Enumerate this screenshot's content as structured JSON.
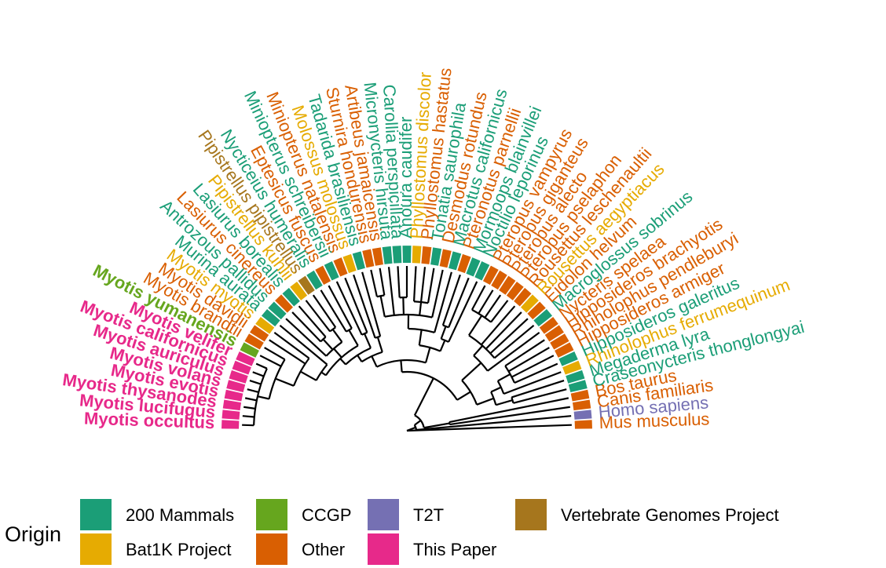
{
  "colors": {
    "200 Mammals": "#1b9e77",
    "Bat1K Project": "#e6ab02",
    "CCGP": "#66a61e",
    "Other": "#d95f02",
    "T2T": "#7570b3",
    "This Paper": "#e7298a",
    "Vertebrate Genomes Project": "#a6761d",
    "branch": "#000000"
  },
  "legend": {
    "title": "Origin",
    "items": [
      {
        "label": "200 Mammals",
        "origin": "200 Mammals"
      },
      {
        "label": "Bat1K Project",
        "origin": "Bat1K Project"
      },
      {
        "label": "CCGP",
        "origin": "CCGP"
      },
      {
        "label": "Other",
        "origin": "Other"
      },
      {
        "label": "T2T",
        "origin": "T2T"
      },
      {
        "label": "This Paper",
        "origin": "This Paper"
      },
      {
        "label": "Vertebrate Genomes Project",
        "origin": "Vertebrate Genomes Project"
      }
    ]
  },
  "tips": [
    {
      "name": "Mus musculus",
      "origin": "Other",
      "bold": false
    },
    {
      "name": "Homo sapiens",
      "origin": "T2T",
      "bold": false
    },
    {
      "name": "Canis familiaris",
      "origin": "Other",
      "bold": false
    },
    {
      "name": "Bos taurus",
      "origin": "Other",
      "bold": false
    },
    {
      "name": "Craseonycteris thonglongyai",
      "origin": "200 Mammals",
      "bold": false
    },
    {
      "name": "Megaderma lyra",
      "origin": "200 Mammals",
      "bold": false
    },
    {
      "name": "Rhinolophus ferrumequinum",
      "origin": "Bat1K Project",
      "bold": false
    },
    {
      "name": "Hipposideros galeritus",
      "origin": "200 Mammals",
      "bold": false
    },
    {
      "name": "Hipposideros armiger",
      "origin": "Other",
      "bold": false
    },
    {
      "name": "Rhinolophus pendleburyi",
      "origin": "Other",
      "bold": false
    },
    {
      "name": "Hipposideros brachyotis",
      "origin": "Other",
      "bold": false
    },
    {
      "name": "Nycteris spelaea",
      "origin": "Other",
      "bold": false
    },
    {
      "name": "Macroglossus sobrinus",
      "origin": "200 Mammals",
      "bold": false
    },
    {
      "name": "Eidolon helvum",
      "origin": "Other",
      "bold": false
    },
    {
      "name": "Rousettus aegyptiacus",
      "origin": "Bat1K Project",
      "bold": false
    },
    {
      "name": "Rousettus leschenaultii",
      "origin": "Other",
      "bold": false
    },
    {
      "name": "Pteropus pselaphon",
      "origin": "Other",
      "bold": false
    },
    {
      "name": "Pteropus alecto",
      "origin": "Other",
      "bold": false
    },
    {
      "name": "Pteropus giganteus",
      "origin": "Other",
      "bold": false
    },
    {
      "name": "Pteropus vampyrus",
      "origin": "Other",
      "bold": false
    },
    {
      "name": "Noctilio leporinus",
      "origin": "200 Mammals",
      "bold": false
    },
    {
      "name": "Mormoops blainvillei",
      "origin": "200 Mammals",
      "bold": false
    },
    {
      "name": "Pteronotus parnellii",
      "origin": "Other",
      "bold": false
    },
    {
      "name": "Macrotus californicus",
      "origin": "200 Mammals",
      "bold": false
    },
    {
      "name": "Desmodus rotundus",
      "origin": "Other",
      "bold": false
    },
    {
      "name": "Tonatia saurophila",
      "origin": "200 Mammals",
      "bold": false
    },
    {
      "name": "Phyllostomus hastatus",
      "origin": "Other",
      "bold": false
    },
    {
      "name": "Phyllostomus discolor",
      "origin": "Bat1K Project",
      "bold": false
    },
    {
      "name": "Anoura caudifer",
      "origin": "200 Mammals",
      "bold": false
    },
    {
      "name": "Carollia perspicillata",
      "origin": "200 Mammals",
      "bold": false
    },
    {
      "name": "Micronycteris hirsuta",
      "origin": "200 Mammals",
      "bold": false
    },
    {
      "name": "Artibeus jamaicensis",
      "origin": "Other",
      "bold": false
    },
    {
      "name": "Sturnira hondurensis",
      "origin": "Other",
      "bold": false
    },
    {
      "name": "Tadarida brasiliensis",
      "origin": "200 Mammals",
      "bold": false
    },
    {
      "name": "Molossus molossus",
      "origin": "Bat1K Project",
      "bold": false
    },
    {
      "name": "Miniopterus natalensis",
      "origin": "Other",
      "bold": false
    },
    {
      "name": "Miniopterus schreibersii",
      "origin": "200 Mammals",
      "bold": false
    },
    {
      "name": "Eptesicus fuscus",
      "origin": "Other",
      "bold": false
    },
    {
      "name": "Nycticeius humeralis",
      "origin": "200 Mammals",
      "bold": false
    },
    {
      "name": "Pipistrellus pipistrellus",
      "origin": "Vertebrate Genomes Project",
      "bold": false
    },
    {
      "name": "Pipistrellus kuhlii",
      "origin": "Bat1K Project",
      "bold": false
    },
    {
      "name": "Lasiurus borealis",
      "origin": "200 Mammals",
      "bold": false
    },
    {
      "name": "Lasiurus cinereus",
      "origin": "Other",
      "bold": false
    },
    {
      "name": "Antrozous pallidus",
      "origin": "200 Mammals",
      "bold": false
    },
    {
      "name": "Murina aurata",
      "origin": "200 Mammals",
      "bold": false
    },
    {
      "name": "Myotis myotis",
      "origin": "Bat1K Project",
      "bold": false
    },
    {
      "name": "Myotis davidii",
      "origin": "Other",
      "bold": false
    },
    {
      "name": "Myotis brandtii",
      "origin": "Other",
      "bold": false
    },
    {
      "name": "Myotis yumanensis",
      "origin": "CCGP",
      "bold": true
    },
    {
      "name": "Myotis velifer",
      "origin": "This Paper",
      "bold": true
    },
    {
      "name": "Myotis californicus",
      "origin": "This Paper",
      "bold": true
    },
    {
      "name": "Myotis auriculus",
      "origin": "This Paper",
      "bold": true
    },
    {
      "name": "Myotis volans",
      "origin": "This Paper",
      "bold": true
    },
    {
      "name": "Myotis evotis",
      "origin": "This Paper",
      "bold": true
    },
    {
      "name": "Myotis thysanodes",
      "origin": "This Paper",
      "bold": true
    },
    {
      "name": "Myotis lucifugus",
      "origin": "This Paper",
      "bold": true
    },
    {
      "name": "Myotis occultus",
      "origin": "This Paper",
      "bold": true
    }
  ]
}
